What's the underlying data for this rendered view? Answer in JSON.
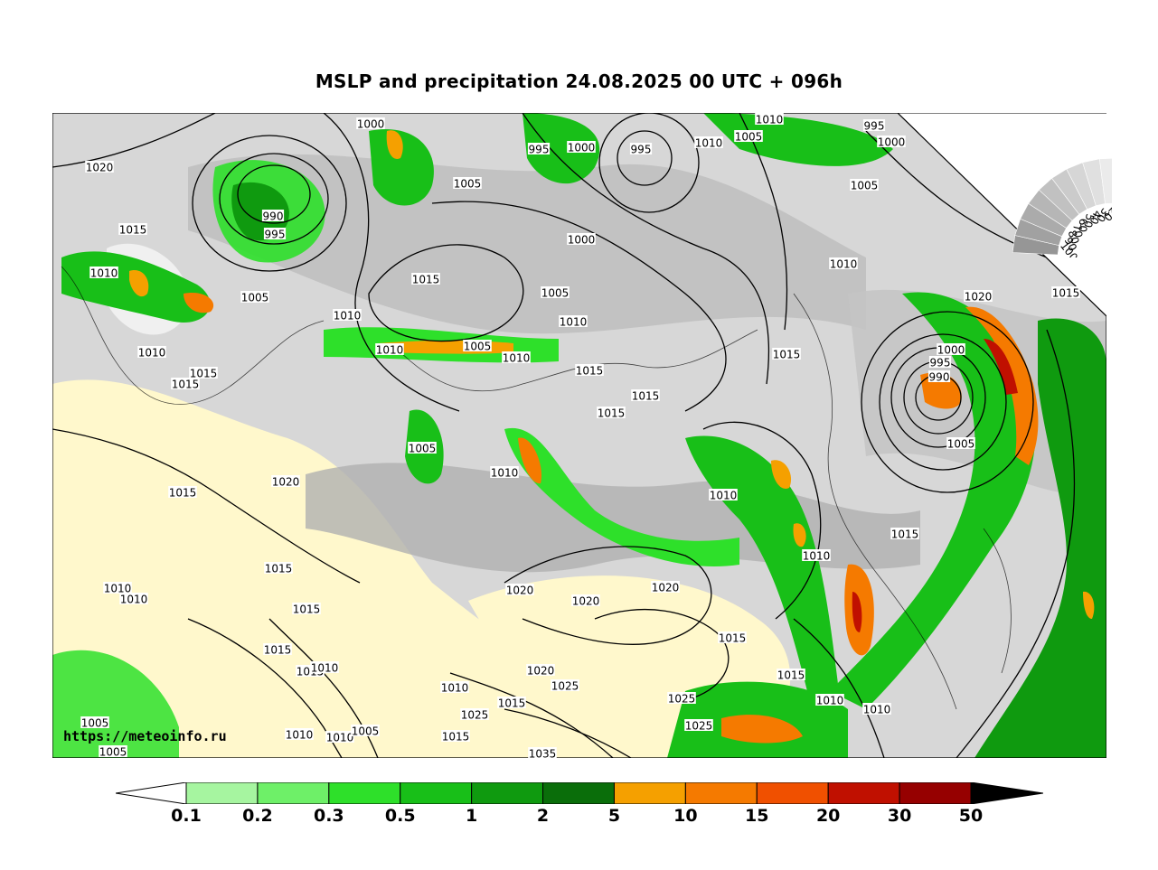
{
  "title": "MSLP and precipitation 24.08.2025 00 UTC + 096h",
  "watermark": "https://meteoinfo.ru",
  "cloud_scale": {
    "labels": [
      "100",
      "90",
      "80",
      "70",
      "60",
      "50",
      "40",
      "30",
      "20"
    ]
  },
  "colorbar": {
    "labels": [
      "0.1",
      "0.2",
      "0.3",
      "0.5",
      "1",
      "2",
      "5",
      "10",
      "15",
      "20",
      "30",
      "50"
    ],
    "colors": [
      "#a6f5a0",
      "#6ef068",
      "#2ee02a",
      "#18bf18",
      "#0f9a0f",
      "#0a6e0a",
      "#f5a000",
      "#f57a00",
      "#f05000",
      "#c01000",
      "#960000"
    ],
    "under_color": "#ffffff",
    "over_color": "#000000"
  },
  "isobar_labels": [
    "1000",
    "1010",
    "1005",
    "995",
    "1000",
    "995",
    "1010",
    "1005",
    "995",
    "1000",
    "1020",
    "990",
    "995",
    "1005",
    "1000",
    "1015",
    "1010",
    "1005",
    "1005",
    "1010",
    "1015",
    "1010",
    "1005",
    "1010",
    "1020",
    "1015",
    "1010",
    "1015",
    "1010",
    "1015",
    "1000",
    "995",
    "990",
    "1015",
    "1005",
    "1010",
    "1015",
    "1015",
    "1005",
    "1010",
    "1010",
    "1015",
    "1020",
    "1015",
    "1010",
    "1015",
    "1010",
    "1010",
    "1020",
    "1015",
    "1015",
    "1020",
    "1020",
    "1015",
    "1015",
    "1015",
    "1020",
    "1025",
    "1015",
    "1010",
    "1025",
    "1010",
    "1025",
    "1010",
    "1010",
    "1005",
    "1015",
    "1010",
    "1005",
    "1025",
    "1015",
    "1010",
    "1035",
    "1005"
  ],
  "colors": {
    "land_beige": "#fff8cc",
    "cloud_grey": "#a9a9a9",
    "isobar": "#000000"
  }
}
